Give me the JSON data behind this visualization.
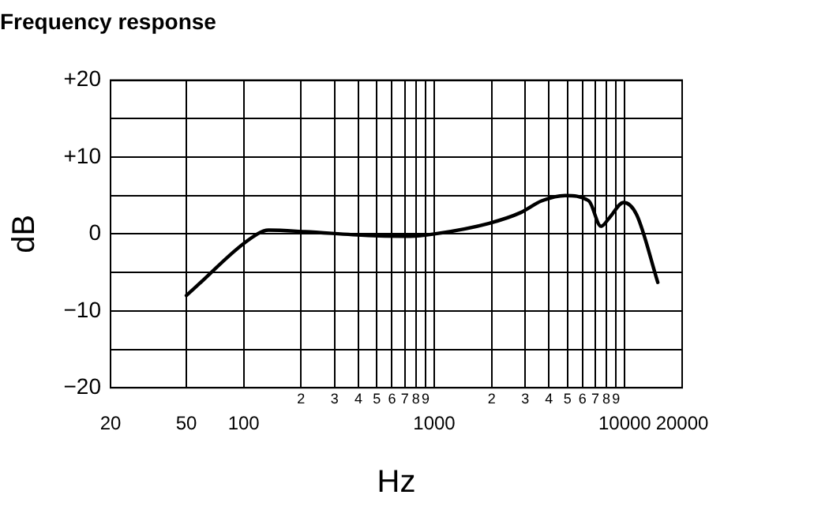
{
  "chart_data": {
    "type": "line",
    "title": "Frequency response",
    "xlabel": "Hz",
    "ylabel": "dB",
    "log": "x",
    "x": [
      50,
      118,
      135,
      209,
      448,
      750,
      1000,
      1946,
      2852,
      3656,
      4866,
      6476,
      7500,
      8300,
      9860,
      11540,
      14900
    ],
    "series": [
      {
        "color": "#000000",
        "values": [
          -8,
          0,
          0.5,
          0.3,
          -0.2,
          -0.3,
          0,
          1.4,
          2.8,
          4.3,
          5,
          4.3,
          1,
          2.1,
          4.1,
          2.5,
          -6.3
        ]
      }
    ],
    "xlim": [
      20,
      20000
    ],
    "xticks": [
      20,
      50,
      100,
      {
        "value": 200,
        "label": null
      },
      {
        "value": 300,
        "label": null
      },
      {
        "value": 400,
        "label": null
      },
      {
        "value": 500,
        "label": null
      },
      {
        "value": 600,
        "label": null
      },
      {
        "value": 700,
        "label": null
      },
      {
        "value": 800,
        "label": null
      },
      {
        "value": 900,
        "label": null
      },
      1000,
      {
        "value": 2000,
        "label": null
      },
      {
        "value": 3000,
        "label": null
      },
      {
        "value": 4000,
        "label": null
      },
      {
        "value": 5000,
        "label": null
      },
      {
        "value": 6000,
        "label": null
      },
      {
        "value": 7000,
        "label": null
      },
      {
        "value": 8000,
        "label": null
      },
      {
        "value": 9000,
        "label": null
      },
      10000,
      20000
    ],
    "annotations": [
      "2",
      "3",
      "4",
      "5",
      "6",
      "7",
      "8",
      "9",
      "2",
      "3",
      "4",
      "5",
      "6",
      "7",
      "8",
      "9"
    ],
    "ylim": [
      -20,
      20
    ],
    "yticks": [
      {
        "value": -20,
        "label": "−20"
      },
      {
        "value": -15,
        "label": null
      },
      {
        "value": -10,
        "label": "−10"
      },
      {
        "value": -5,
        "label": null
      },
      0,
      {
        "value": 5,
        "label": null
      },
      {
        "value": 10,
        "label": "+10"
      },
      {
        "value": 15,
        "label": null
      },
      {
        "value": 20,
        "label": "+20"
      }
    ],
    "grid": true,
    "marker": "none",
    "line_style": "solid",
    "legend": false
  }
}
